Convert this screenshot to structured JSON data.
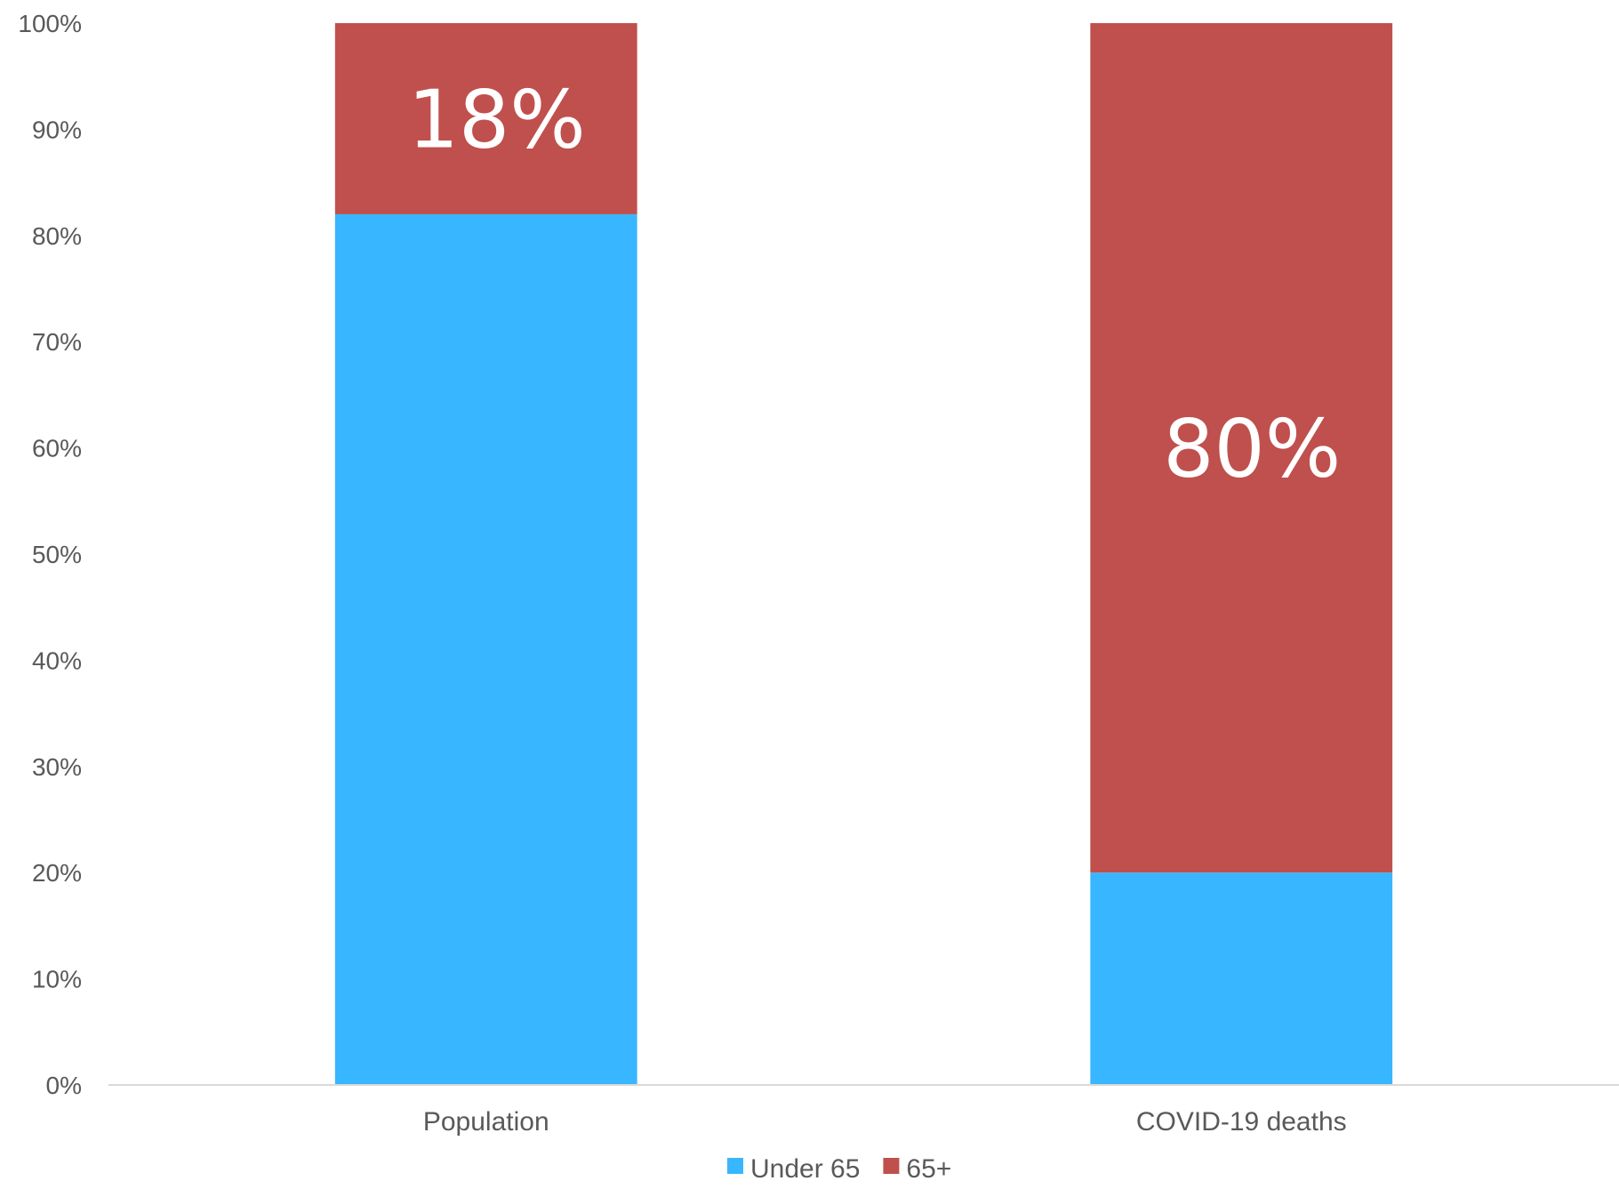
{
  "chart_data": {
    "type": "bar",
    "stacked": true,
    "categories": [
      "Population",
      "COVID-19 deaths"
    ],
    "series": [
      {
        "name": "Under 65",
        "values": [
          82,
          20
        ],
        "color": "#38B6FF"
      },
      {
        "name": "65+",
        "values": [
          18,
          80
        ],
        "color": "#C0504D"
      }
    ],
    "data_labels": [
      {
        "category": "Population",
        "series": "65+",
        "text": "18%"
      },
      {
        "category": "COVID-19 deaths",
        "series": "65+",
        "text": "80%"
      }
    ],
    "yticks": [
      "0%",
      "10%",
      "20%",
      "30%",
      "40%",
      "50%",
      "60%",
      "70%",
      "80%",
      "90%",
      "100%"
    ],
    "ylim": [
      0,
      100
    ],
    "title": "",
    "xlabel": "",
    "ylabel": "",
    "grid": false,
    "legend_position": "bottom"
  }
}
